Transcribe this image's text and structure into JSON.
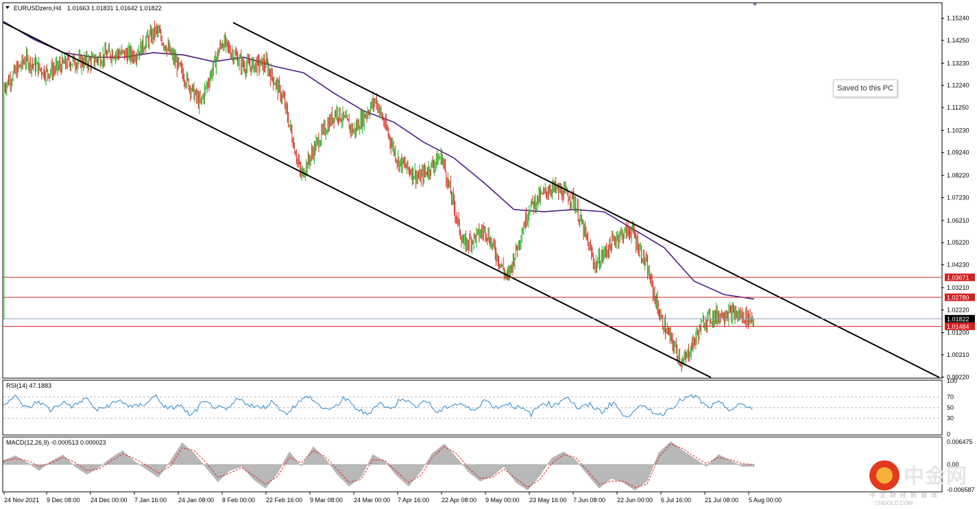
{
  "header": {
    "symbol": "EURUSDzero,H4",
    "ohlc": "1.01663 1.01831 1.01642 1.01822"
  },
  "toast": {
    "text": "Saved to this PC"
  },
  "watermark": {
    "brand": "中金网",
    "tagline": "中文财经新媒体",
    "site": "CNGOLD.COM"
  },
  "colors": {
    "bull": "#22b022",
    "bear": "#e0201a",
    "ma": "#4b1b86",
    "rsi": "#2b86c8",
    "hline": "#d32020",
    "bid": "#8fa2b8",
    "channel": "#000000",
    "macd_hist": "#b8b8b8",
    "macd_signal": "#e0201a"
  },
  "chart_data": [
    {
      "type": "candlestick",
      "symbol": "EURUSDzero",
      "timeframe": "H4",
      "ylim": [
        0.992,
        1.159
      ],
      "y_ticks": [
        "1.15240",
        "1.14250",
        "1.13230",
        "1.12240",
        "1.11250",
        "1.10230",
        "1.09240",
        "1.08220",
        "1.07230",
        "1.06210",
        "1.05220",
        "1.04230",
        "1.03210",
        "1.02220",
        "1.01200",
        "1.00210",
        "0.99220"
      ],
      "x_labels": [
        "24 Nov 2021",
        "9 Dec 08:00",
        "24 Dec 00:00",
        "7 Jan 16:00",
        "24 Jan 08:00",
        "8 Feb 00:00",
        "22 Feb 16:00",
        "9 Mar 08:00",
        "24 Mar 00:00",
        "7 Apr 16:00",
        "22 Apr 08:00",
        "9 May 00:00",
        "23 May 16:00",
        "7 Jun 08:00",
        "22 Jun 00:00",
        "6 Jul 16:00",
        "21 Jul 08:00",
        "5 Aug 00:00"
      ],
      "price_path": [
        {
          "date": "24 Nov 2021",
          "price": 1.122
        },
        {
          "date": "27 Nov 2021",
          "price": 1.134
        },
        {
          "date": "9 Dec 08:00",
          "price": 1.128
        },
        {
          "date": "16 Dec 2021",
          "price": 1.133
        },
        {
          "date": "24 Dec 00:00",
          "price": 1.133
        },
        {
          "date": "31 Dec 2021",
          "price": 1.137
        },
        {
          "date": "7 Jan 16:00",
          "price": 1.136
        },
        {
          "date": "14 Jan 2022",
          "price": 1.147
        },
        {
          "date": "24 Jan 08:00",
          "price": 1.131
        },
        {
          "date": "28 Jan 2022",
          "price": 1.114
        },
        {
          "date": "8 Feb 00:00",
          "price": 1.142
        },
        {
          "date": "12 Feb 2022",
          "price": 1.131
        },
        {
          "date": "22 Feb 16:00",
          "price": 1.132
        },
        {
          "date": "24 Feb 2022",
          "price": 1.116
        },
        {
          "date": "7 Mar 2022",
          "price": 1.082
        },
        {
          "date": "14 Mar 2022",
          "price": 1.098
        },
        {
          "date": "17 Mar 2022",
          "price": 1.111
        },
        {
          "date": "24 Mar 00:00",
          "price": 1.102
        },
        {
          "date": "31 Mar 2022",
          "price": 1.116
        },
        {
          "date": "7 Apr 16:00",
          "price": 1.089
        },
        {
          "date": "14 Apr 2022",
          "price": 1.081
        },
        {
          "date": "21 Apr 2022",
          "price": 1.091
        },
        {
          "date": "28 Apr 2022",
          "price": 1.051
        },
        {
          "date": "5 May 2022",
          "price": 1.058
        },
        {
          "date": "13 May 2022",
          "price": 1.036
        },
        {
          "date": "23 May 16:00",
          "price": 1.068
        },
        {
          "date": "30 May 2022",
          "price": 1.077
        },
        {
          "date": "7 Jun 08:00",
          "price": 1.072
        },
        {
          "date": "14 Jun 2022",
          "price": 1.042
        },
        {
          "date": "22 Jun 00:00",
          "price": 1.055
        },
        {
          "date": "27 Jun 2022",
          "price": 1.058
        },
        {
          "date": "1 Jul 2022",
          "price": 1.042
        },
        {
          "date": "6 Jul 16:00",
          "price": 1.018
        },
        {
          "date": "14 Jul 2022",
          "price": 0.998
        },
        {
          "date": "21 Jul 08:00",
          "price": 1.018
        },
        {
          "date": "27 Jul 2022",
          "price": 1.021
        },
        {
          "date": "5 Aug 00:00",
          "price": 1.0182
        }
      ],
      "moving_average": [
        1.151,
        1.143,
        1.137,
        1.135,
        1.135,
        1.137,
        1.136,
        1.133,
        1.135,
        1.131,
        1.128,
        1.119,
        1.111,
        1.106,
        1.097,
        1.09,
        1.079,
        1.067,
        1.066,
        1.067,
        1.066,
        1.058,
        1.05,
        1.035,
        1.029,
        1.027
      ],
      "horizontal_levels": [
        {
          "label": "1.03671",
          "price": 1.03671,
          "color": "#d32020"
        },
        {
          "label": "1.02780",
          "price": 1.0278,
          "color": "#d32020"
        },
        {
          "label": "1.01822",
          "price": 1.01822,
          "color": "#8fa2b8",
          "current": true
        },
        {
          "label": "1.01484",
          "price": 1.01484,
          "color": "#d32020"
        }
      ],
      "channel_lines": [
        {
          "from": {
            "date": "24 Nov 2021",
            "price": 1.151
          },
          "to": {
            "date": "6 Jul 16:00",
            "price": 0.992
          }
        },
        {
          "from": {
            "date": "8 Feb 00:00",
            "price": 1.151
          },
          "to": {
            "date": "after 5 Aug 00:00",
            "price": 0.992
          }
        }
      ]
    },
    {
      "type": "line",
      "name": "RSI(14) 47.1883",
      "ylim": [
        0,
        100
      ],
      "levels": [
        30,
        50,
        70
      ],
      "y_ticks": [
        "100",
        "70",
        "50",
        "30",
        "0"
      ],
      "values": [
        58,
        70,
        48,
        62,
        45,
        60,
        52,
        68,
        44,
        55,
        63,
        50,
        57,
        72,
        46,
        55,
        34,
        60,
        52,
        44,
        66,
        56,
        48,
        62,
        38,
        57,
        72,
        52,
        45,
        68,
        50,
        36,
        60,
        46,
        70,
        52,
        64,
        40,
        54,
        58,
        43,
        65,
        50,
        58,
        49,
        38,
        60,
        54,
        72,
        48,
        55,
        42,
        61,
        30,
        52,
        47,
        36,
        52,
        67,
        71,
        50,
        58,
        46,
        56,
        47
      ]
    },
    {
      "type": "area",
      "name": "MACD(12,26,9) -0.000513 0.000023",
      "ylim": [
        -0.00675,
        0.00675
      ],
      "y_ticks": [
        "0.006475",
        "0.00",
        "-0.006587"
      ],
      "histogram": [
        0.001,
        0.0022,
        0.0005,
        -0.0015,
        0.0008,
        0.0024,
        -0.0005,
        -0.0025,
        -0.0008,
        0.0016,
        0.0035,
        0.0008,
        -0.0012,
        -0.0032,
        0.0008,
        0.0055,
        0.0028,
        -0.0008,
        -0.0044,
        -0.0015,
        -0.0005,
        -0.0038,
        -0.006,
        -0.0022,
        0.0032,
        -0.0005,
        0.0045,
        0.0015,
        -0.0025,
        -0.0055,
        -0.0032,
        0.0025,
        0.0008,
        -0.0028,
        -0.0055,
        -0.0018,
        0.0028,
        0.0052,
        0.0018,
        -0.0018,
        -0.0042,
        -0.003,
        -0.0005,
        -0.0045,
        -0.0065,
        -0.0028,
        0.0015,
        0.0032,
        0.0012,
        -0.0025,
        -0.006,
        -0.0035,
        -0.0045,
        -0.0065,
        -0.0042,
        0.003,
        0.0058,
        0.0035,
        0.0015,
        -0.0005,
        0.0025,
        0.001,
        -0.0005,
        -0.0005
      ],
      "signal": [
        0.0008,
        0.0015,
        0.001,
        -0.0005,
        0.0004,
        0.0018,
        0.0005,
        -0.0015,
        -0.0012,
        0.0008,
        0.0026,
        0.0015,
        -0.0002,
        -0.0022,
        -0.0005,
        0.0042,
        0.0035,
        0.0005,
        -0.0032,
        -0.0022,
        -0.0008,
        -0.0028,
        -0.005,
        -0.003,
        0.0018,
        0.0004,
        0.0035,
        0.002,
        -0.0012,
        -0.0045,
        -0.0038,
        0.0012,
        0.001,
        -0.0018,
        -0.0045,
        -0.0028,
        0.0018,
        0.0045,
        0.0028,
        -0.0008,
        -0.0035,
        -0.0033,
        -0.0012,
        -0.0035,
        -0.0058,
        -0.0038,
        0.0002,
        0.0025,
        0.0018,
        -0.0015,
        -0.005,
        -0.0042,
        -0.0042,
        -0.0058,
        -0.005,
        0.0018,
        0.0052,
        0.004,
        0.002,
        0.0002,
        0.0018,
        0.0012,
        0.0002,
        2e-05
      ]
    }
  ]
}
